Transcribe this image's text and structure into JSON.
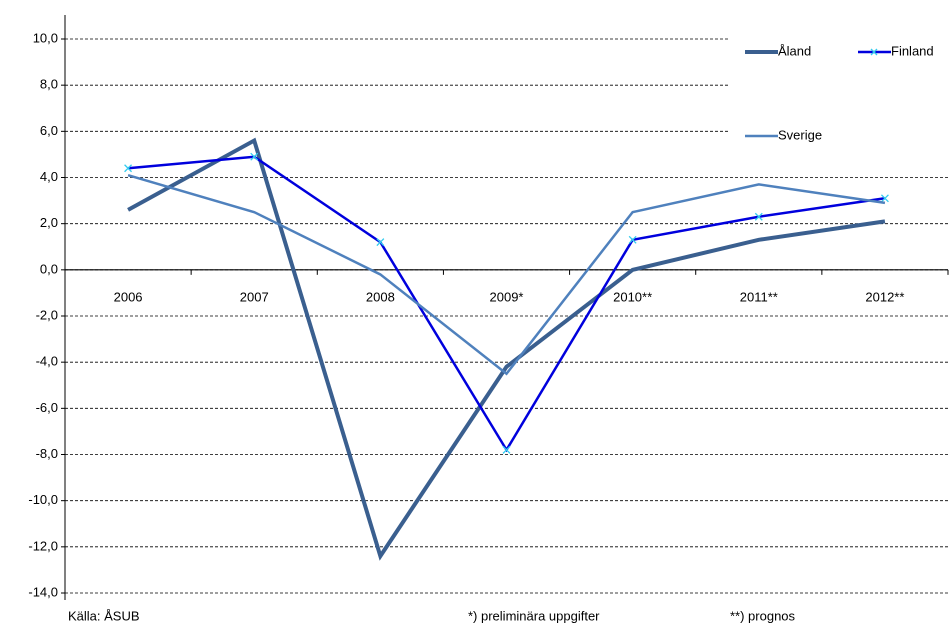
{
  "chart_data": {
    "type": "line",
    "categories": [
      "2006",
      "2007",
      "2008",
      "2009*",
      "2010**",
      "2011**",
      "2012**"
    ],
    "series": [
      {
        "name": "Åland",
        "color": "#3a5f8f",
        "values": [
          2.6,
          5.6,
          -12.4,
          -4.2,
          0.0,
          1.3,
          2.1
        ]
      },
      {
        "name": "Finland",
        "color": "#0000dd",
        "marker_color": "#33ccee",
        "values": [
          4.4,
          4.9,
          1.2,
          -7.8,
          1.3,
          2.3,
          3.1
        ]
      },
      {
        "name": "Sverige",
        "color": "#4f81bd",
        "values": [
          4.1,
          2.5,
          -0.2,
          -4.5,
          2.5,
          3.7,
          2.9
        ]
      }
    ],
    "ylim": [
      -14,
      10
    ],
    "yticks": [
      {
        "value": -14,
        "label": "-14,0"
      },
      {
        "value": -12,
        "label": "-12,0"
      },
      {
        "value": -10,
        "label": "-10,0"
      },
      {
        "value": -8,
        "label": "-8,0"
      },
      {
        "value": -6,
        "label": "-6,0"
      },
      {
        "value": -4,
        "label": "-4,0"
      },
      {
        "value": -2,
        "label": "-2,0"
      },
      {
        "value": 0,
        "label": "0,0"
      },
      {
        "value": 2,
        "label": "2,0"
      },
      {
        "value": 4,
        "label": "4,0"
      },
      {
        "value": 6,
        "label": "6,0"
      },
      {
        "value": 8,
        "label": "8,0"
      },
      {
        "value": 10,
        "label": "10,0"
      }
    ],
    "grid": true,
    "legend": "top-right",
    "annotations": [
      "Källa: ÅSUB",
      "*) preliminära uppgifter",
      "**) prognos"
    ]
  }
}
